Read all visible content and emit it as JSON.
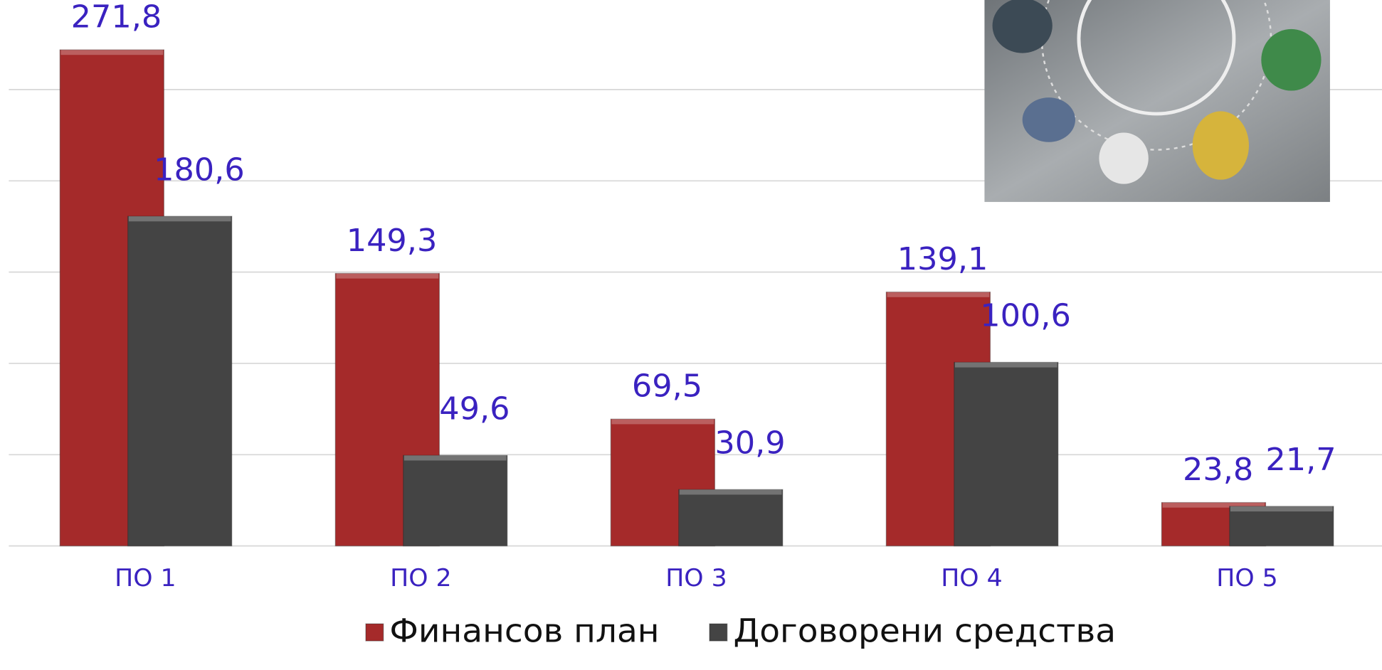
{
  "chart_data": {
    "type": "bar",
    "categories": [
      "ПО 1",
      "ПО 2",
      "ПО 3",
      "ПО 4",
      "ПО 5"
    ],
    "series": [
      {
        "name": "Финансов план",
        "color": "#a52a2a",
        "values": [
          271.8,
          149.3,
          69.5,
          139.1,
          23.8
        ],
        "value_labels": [
          "271,8",
          "149,3",
          "69,5",
          "139,1",
          "23,8"
        ]
      },
      {
        "name": "Договорени средства",
        "color": "#444444",
        "values": [
          180.6,
          49.6,
          30.9,
          100.6,
          21.7
        ],
        "value_labels": [
          "180,6",
          "49,6",
          "30,9",
          "100,6",
          "21,7"
        ]
      }
    ],
    "ylim": [
      0,
      300
    ],
    "yticks": [
      0,
      50,
      100,
      150,
      200,
      250
    ],
    "grid": true,
    "legend": "bottom"
  }
}
